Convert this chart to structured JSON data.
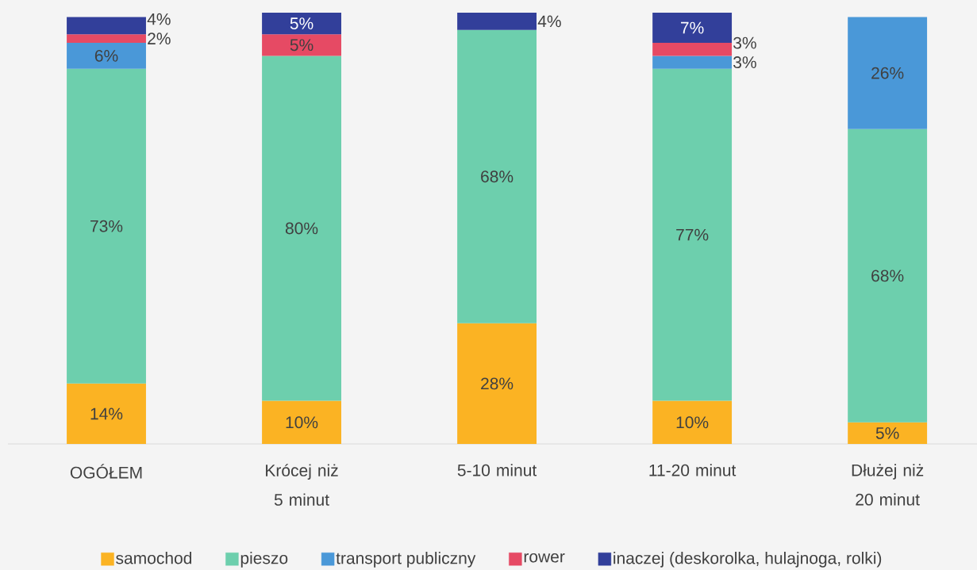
{
  "chart_data": {
    "type": "bar",
    "stacked": true,
    "legend": "bottom",
    "categories": [
      "OGÓŁEM",
      "Krócej niż 5 minut",
      "5-10 minut",
      "11-20 minut",
      "Dłużej niż 20 minut"
    ],
    "series": [
      {
        "name": "samochod",
        "color": "#fbb323",
        "values": [
          14,
          10,
          28,
          10,
          5
        ],
        "value_labels": [
          "14%",
          "10%",
          "28%",
          "10%",
          "5%"
        ]
      },
      {
        "name": "pieszo",
        "color": "#6dcfad",
        "values": [
          73,
          80,
          68,
          77,
          68
        ],
        "value_labels": [
          "73%",
          "80%",
          "68%",
          "77%",
          "68%"
        ]
      },
      {
        "name": "transport publiczny",
        "color": "#4a98d8",
        "values": [
          6,
          null,
          null,
          3,
          26
        ],
        "value_labels": [
          "6%",
          null,
          null,
          "3%",
          "26%"
        ]
      },
      {
        "name": "rower",
        "color": "#e64a64",
        "values": [
          2,
          5,
          null,
          3,
          null
        ],
        "value_labels": [
          "2%",
          "5%",
          null,
          "3%",
          null
        ]
      },
      {
        "name": "inaczej (deskorolka, hulajnoga, rolki)",
        "color": "#323f9a",
        "values": [
          4,
          5,
          4,
          7,
          null
        ],
        "value_labels": [
          "4%",
          "5%",
          "4%",
          "7%",
          null
        ]
      }
    ]
  }
}
